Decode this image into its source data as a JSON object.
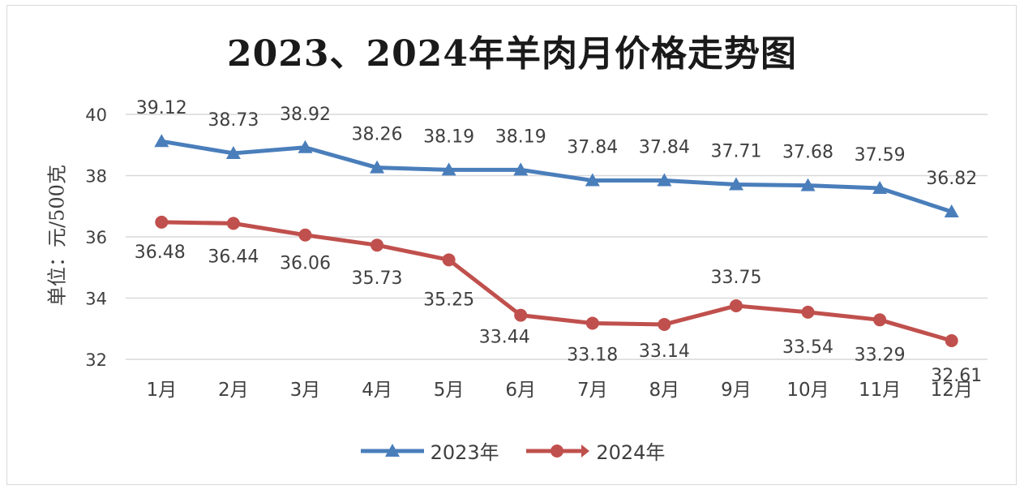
{
  "chart_data": {
    "type": "line",
    "title": "2023、2024年羊肉月价格走势图",
    "ylabel": "单位：元/500克",
    "xlabel": "",
    "categories": [
      "1月",
      "2月",
      "3月",
      "4月",
      "5月",
      "6月",
      "7月",
      "8月",
      "9月",
      "10月",
      "11月",
      "12月"
    ],
    "ylim": [
      32,
      40
    ],
    "yticks": [
      32,
      34,
      36,
      38,
      40
    ],
    "grid": true,
    "legend_position": "bottom",
    "series": [
      {
        "name": "2023年",
        "color": "#4a7ebb",
        "marker": "triangle",
        "values": [
          39.12,
          38.73,
          38.92,
          38.26,
          38.19,
          38.19,
          37.84,
          37.84,
          37.71,
          37.68,
          37.59,
          36.82
        ],
        "labels": [
          "39.12",
          "38.73",
          "38.92",
          "38.26",
          "38.19",
          "38.19",
          "37.84",
          "37.84",
          "37.71",
          "37.68",
          "37.59",
          "36.82"
        ]
      },
      {
        "name": "2024年",
        "color": "#c0504d",
        "marker": "circle",
        "values": [
          36.48,
          36.44,
          36.06,
          35.73,
          35.25,
          33.44,
          33.18,
          33.14,
          33.75,
          33.54,
          33.29,
          32.61
        ],
        "labels": [
          "36.48",
          "36.44",
          "36.06",
          "35.73",
          "35.25",
          "33.44",
          "33.18",
          "33.14",
          "33.75",
          "33.54",
          "33.29",
          "32.61"
        ]
      }
    ]
  }
}
